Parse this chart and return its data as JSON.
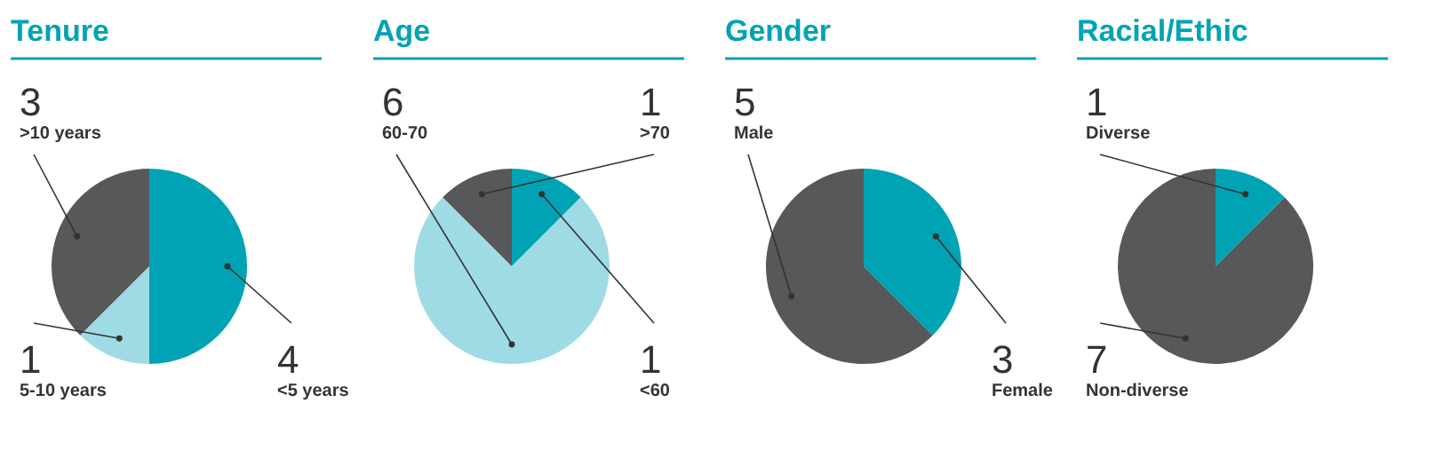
{
  "chart_data": [
    {
      "type": "pie",
      "title": "Tenure",
      "categories": [
        "<5 years",
        "5-10 years",
        ">10 years"
      ],
      "values": [
        4,
        1,
        3
      ],
      "colors": [
        "#00a3b4",
        "#9fdbe4",
        "#57585a"
      ],
      "data_labels": true,
      "legend": false
    },
    {
      "type": "pie",
      "title": "Age",
      "categories": [
        "<60",
        "60-70",
        ">70"
      ],
      "values": [
        1,
        6,
        1
      ],
      "colors": [
        "#00a3b4",
        "#9fdbe4",
        "#57585a"
      ],
      "data_labels": true,
      "legend": false
    },
    {
      "type": "pie",
      "title": "Gender",
      "categories": [
        "Female",
        "Male"
      ],
      "values": [
        3,
        5
      ],
      "colors": [
        "#00a3b4",
        "#57585a"
      ],
      "data_labels": true,
      "legend": false
    },
    {
      "type": "pie",
      "title": "Racial/Ethic",
      "categories": [
        "Diverse",
        "Non-diverse"
      ],
      "values": [
        1,
        7
      ],
      "colors": [
        "#00a3b4",
        "#57585a"
      ],
      "data_labels": true,
      "legend": false
    }
  ]
}
